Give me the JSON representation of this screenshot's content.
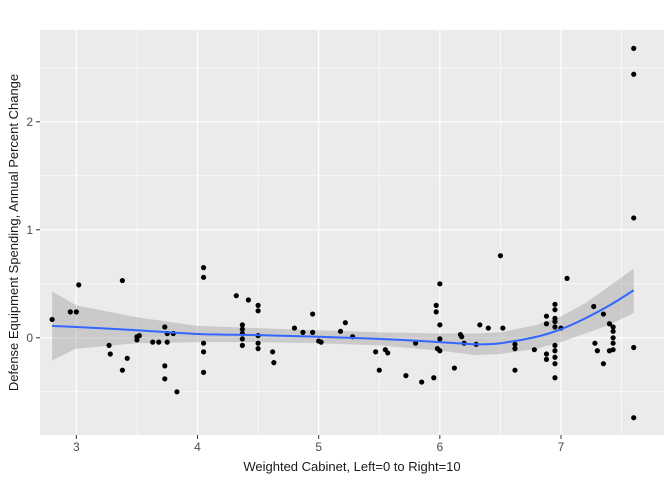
{
  "chart_data": {
    "type": "scatter",
    "title": "",
    "xlabel": "Weighted Cabinet, Left=0 to Right=10",
    "ylabel": "Defense Equipment Spending, Annual Percent Change",
    "xlim": [
      2.7,
      7.85
    ],
    "ylim": [
      -0.9,
      2.85
    ],
    "x_ticks": [
      3,
      4,
      5,
      6,
      7
    ],
    "y_ticks": [
      0,
      1,
      2
    ],
    "x_tick_labels": [
      "3",
      "4",
      "5",
      "6",
      "7"
    ],
    "y_tick_labels": [
      "0",
      "1",
      "2"
    ],
    "grid": true,
    "legend": "none",
    "colors": {
      "panel": "#ebebeb",
      "grid_major": "#ffffff",
      "point": "#000000",
      "smooth_line": "#3366ff",
      "confidence_band": "#999999"
    },
    "points": [
      [
        2.8,
        0.17
      ],
      [
        2.95,
        0.24
      ],
      [
        3.0,
        0.24
      ],
      [
        3.02,
        0.49
      ],
      [
        3.27,
        -0.07
      ],
      [
        3.28,
        -0.15
      ],
      [
        3.38,
        0.53
      ],
      [
        3.38,
        -0.3
      ],
      [
        3.42,
        -0.19
      ],
      [
        3.5,
        0.01
      ],
      [
        3.5,
        -0.02
      ],
      [
        3.52,
        0.02
      ],
      [
        3.63,
        -0.04
      ],
      [
        3.68,
        -0.04
      ],
      [
        3.73,
        0.1
      ],
      [
        3.73,
        -0.26
      ],
      [
        3.73,
        -0.38
      ],
      [
        3.75,
        -0.04
      ],
      [
        3.75,
        0.04
      ],
      [
        3.8,
        0.04
      ],
      [
        3.83,
        -0.5
      ],
      [
        4.05,
        0.65
      ],
      [
        4.05,
        0.56
      ],
      [
        4.05,
        -0.05
      ],
      [
        4.05,
        -0.13
      ],
      [
        4.05,
        -0.32
      ],
      [
        4.32,
        0.39
      ],
      [
        4.37,
        0.12
      ],
      [
        4.37,
        0.08
      ],
      [
        4.37,
        0.04
      ],
      [
        4.37,
        -0.01
      ],
      [
        4.37,
        -0.07
      ],
      [
        4.42,
        0.35
      ],
      [
        4.5,
        0.3
      ],
      [
        4.5,
        0.25
      ],
      [
        4.5,
        0.02
      ],
      [
        4.5,
        -0.05
      ],
      [
        4.5,
        -0.1
      ],
      [
        4.62,
        -0.13
      ],
      [
        4.63,
        -0.23
      ],
      [
        4.8,
        0.09
      ],
      [
        4.87,
        0.05
      ],
      [
        4.95,
        0.22
      ],
      [
        4.95,
        0.05
      ],
      [
        5.0,
        -0.03
      ],
      [
        5.02,
        -0.04
      ],
      [
        5.18,
        0.06
      ],
      [
        5.22,
        0.14
      ],
      [
        5.28,
        0.01
      ],
      [
        5.47,
        -0.13
      ],
      [
        5.5,
        -0.3
      ],
      [
        5.55,
        -0.11
      ],
      [
        5.57,
        -0.14
      ],
      [
        5.72,
        -0.35
      ],
      [
        5.8,
        -0.05
      ],
      [
        5.85,
        -0.41
      ],
      [
        5.95,
        -0.37
      ],
      [
        5.97,
        0.3
      ],
      [
        5.97,
        0.24
      ],
      [
        5.98,
        -0.1
      ],
      [
        6.0,
        0.5
      ],
      [
        6.0,
        0.12
      ],
      [
        6.0,
        -0.01
      ],
      [
        6.0,
        -0.12
      ],
      [
        6.12,
        -0.28
      ],
      [
        6.17,
        0.03
      ],
      [
        6.18,
        0.01
      ],
      [
        6.2,
        -0.05
      ],
      [
        6.3,
        -0.06
      ],
      [
        6.33,
        0.12
      ],
      [
        6.4,
        0.09
      ],
      [
        6.5,
        0.76
      ],
      [
        6.52,
        0.09
      ],
      [
        6.62,
        -0.06
      ],
      [
        6.62,
        -0.1
      ],
      [
        6.62,
        -0.3
      ],
      [
        6.78,
        -0.11
      ],
      [
        6.88,
        0.2
      ],
      [
        6.88,
        0.13
      ],
      [
        6.88,
        -0.15
      ],
      [
        6.88,
        -0.2
      ],
      [
        6.95,
        0.31
      ],
      [
        6.95,
        0.26
      ],
      [
        6.95,
        0.18
      ],
      [
        6.95,
        0.15
      ],
      [
        6.95,
        0.1
      ],
      [
        6.95,
        -0.07
      ],
      [
        6.95,
        -0.12
      ],
      [
        6.95,
        -0.18
      ],
      [
        6.95,
        -0.24
      ],
      [
        6.95,
        -0.37
      ],
      [
        7.0,
        0.09
      ],
      [
        7.05,
        0.55
      ],
      [
        7.27,
        0.29
      ],
      [
        7.28,
        -0.05
      ],
      [
        7.3,
        -0.12
      ],
      [
        7.35,
        0.22
      ],
      [
        7.35,
        -0.24
      ],
      [
        7.4,
        0.13
      ],
      [
        7.4,
        -0.12
      ],
      [
        7.43,
        0.1
      ],
      [
        7.43,
        0.06
      ],
      [
        7.43,
        0.0
      ],
      [
        7.43,
        -0.05
      ],
      [
        7.43,
        -0.11
      ],
      [
        7.6,
        2.68
      ],
      [
        7.6,
        2.44
      ],
      [
        7.6,
        1.11
      ],
      [
        7.6,
        -0.09
      ],
      [
        7.6,
        -0.74
      ]
    ],
    "smooth_x": [
      2.8,
      3.0,
      3.5,
      4.0,
      4.5,
      5.0,
      5.5,
      6.0,
      6.3,
      6.5,
      6.8,
      7.0,
      7.2,
      7.4,
      7.6
    ],
    "smooth_fit": [
      0.11,
      0.1,
      0.07,
      0.035,
      0.025,
      0.01,
      -0.01,
      -0.04,
      -0.06,
      -0.05,
      0.01,
      0.08,
      0.18,
      0.3,
      0.44
    ],
    "smooth_lower": [
      -0.21,
      -0.1,
      -0.05,
      -0.04,
      -0.04,
      -0.05,
      -0.07,
      -0.12,
      -0.16,
      -0.15,
      -0.1,
      -0.04,
      0.04,
      0.12,
      0.23
    ],
    "smooth_upper": [
      0.43,
      0.3,
      0.19,
      0.11,
      0.09,
      0.07,
      0.05,
      0.04,
      0.04,
      0.05,
      0.12,
      0.2,
      0.32,
      0.48,
      0.64
    ]
  }
}
